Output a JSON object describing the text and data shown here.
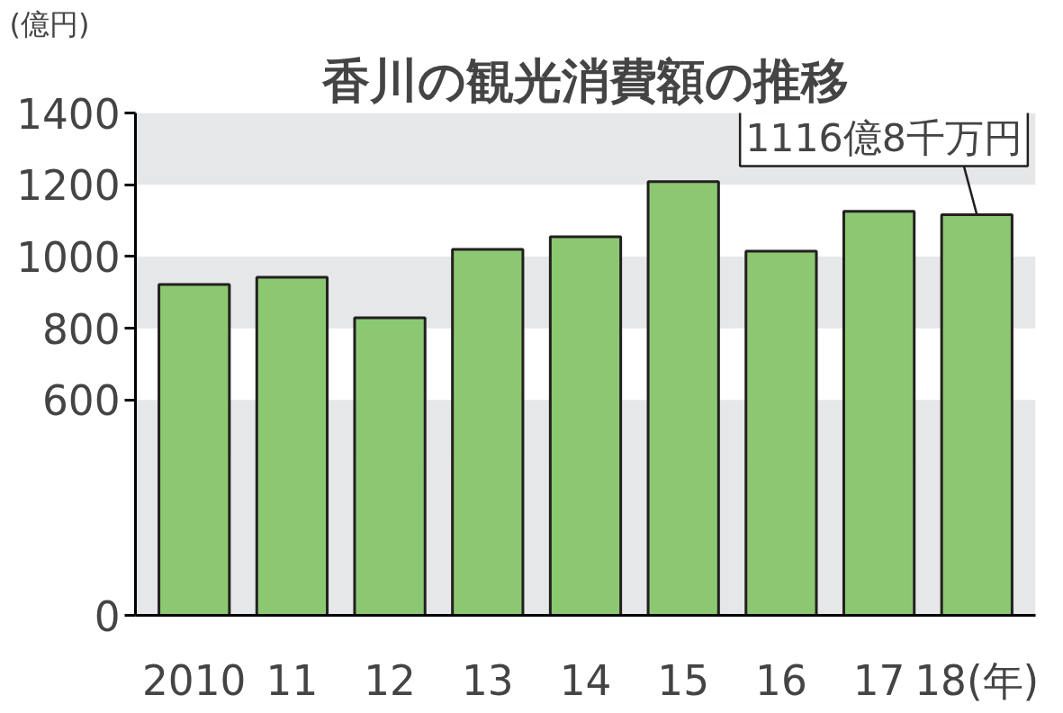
{
  "chart_data": {
    "type": "bar",
    "title": "香川の観光消費額の推移",
    "ylabel": "(億円)",
    "categories": [
      "2010",
      "11",
      "12",
      "13",
      "14",
      "15",
      "16",
      "17",
      "18(年)"
    ],
    "values": [
      922,
      942,
      829,
      1020,
      1055,
      1209,
      1015,
      1126,
      1116.8
    ],
    "color": "#8cc872",
    "ylim": [
      0,
      1400
    ],
    "yticks": [
      0,
      600,
      800,
      1000,
      1200,
      1400
    ],
    "bands": [
      {
        "axis": "y",
        "from": 1200,
        "to": 1400,
        "color": "#e6e7e8"
      },
      {
        "axis": "y",
        "from": 800,
        "to": 1000,
        "color": "#e6e7e8"
      },
      {
        "axis": "y",
        "from": 0,
        "to": 600,
        "color": "#e6e7e8"
      }
    ],
    "annotations": [
      {
        "text": "1116億8千万円",
        "x": "18(年)",
        "y": 1116.8
      }
    ]
  }
}
